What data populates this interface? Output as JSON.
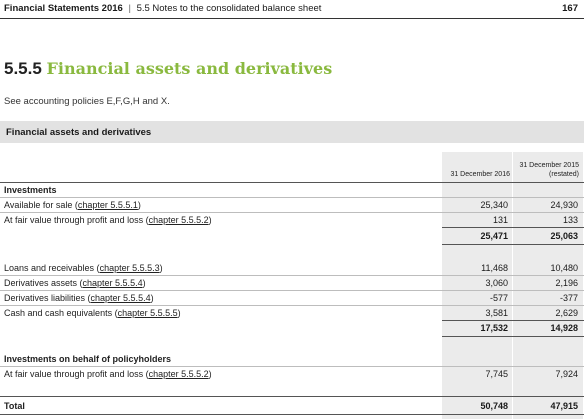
{
  "header": {
    "doc_title": "Financial Statements 2016",
    "separator": "|",
    "section": "5.5 Notes to the consolidated balance sheet",
    "page_number": "167"
  },
  "section": {
    "number": "5.5.5",
    "title": "Financial assets and derivatives",
    "policies_note": "See accounting policies E,F,G,H and X."
  },
  "table": {
    "title": "Financial assets and derivatives",
    "col1_header": "31 December 2016",
    "col2_header_line1": "31 December 2015",
    "col2_header_line2": "(restated)",
    "investments_heading": "Investments",
    "r_afs": {
      "label": "Available for sale (",
      "ref": "chapter 5.5.5.1",
      "end": ")",
      "v2016": "25,340",
      "v2015": "24,930"
    },
    "r_fvpl": {
      "label": "At fair value through profit and loss (",
      "ref": "chapter 5.5.5.2",
      "end": ")",
      "v2016": "131",
      "v2015": "133"
    },
    "investments_total": {
      "v2016": "25,471",
      "v2015": "25,063"
    },
    "r_loans": {
      "label": "Loans and receivables (",
      "ref": "chapter 5.5.5.3",
      "end": ")",
      "v2016": "11,468",
      "v2015": "10,480"
    },
    "r_deriv_a": {
      "label": "Derivatives assets (",
      "ref": "chapter 5.5.5.4",
      "end": ")",
      "v2016": "3,060",
      "v2015": "2,196"
    },
    "r_deriv_l": {
      "label": "Derivatives liabilities (",
      "ref": "chapter 5.5.5.4",
      "end": ")",
      "v2016": "-577",
      "v2015": "-377"
    },
    "r_cash": {
      "label": "Cash and cash equivalents (",
      "ref": "chapter 5.5.5.5",
      "end": ")",
      "v2016": "3,581",
      "v2015": "2,629"
    },
    "group2_total": {
      "v2016": "17,532",
      "v2015": "14,928"
    },
    "policyholders_heading": "Investments on behalf of policyholders",
    "r_ph_fvpl": {
      "label": "At fair value through profit and loss (",
      "ref": "chapter 5.5.5.2",
      "end": ")",
      "v2016": "7,745",
      "v2015": "7,924"
    },
    "total": {
      "label": "Total",
      "v2016": "50,748",
      "v2015": "47,915"
    }
  }
}
